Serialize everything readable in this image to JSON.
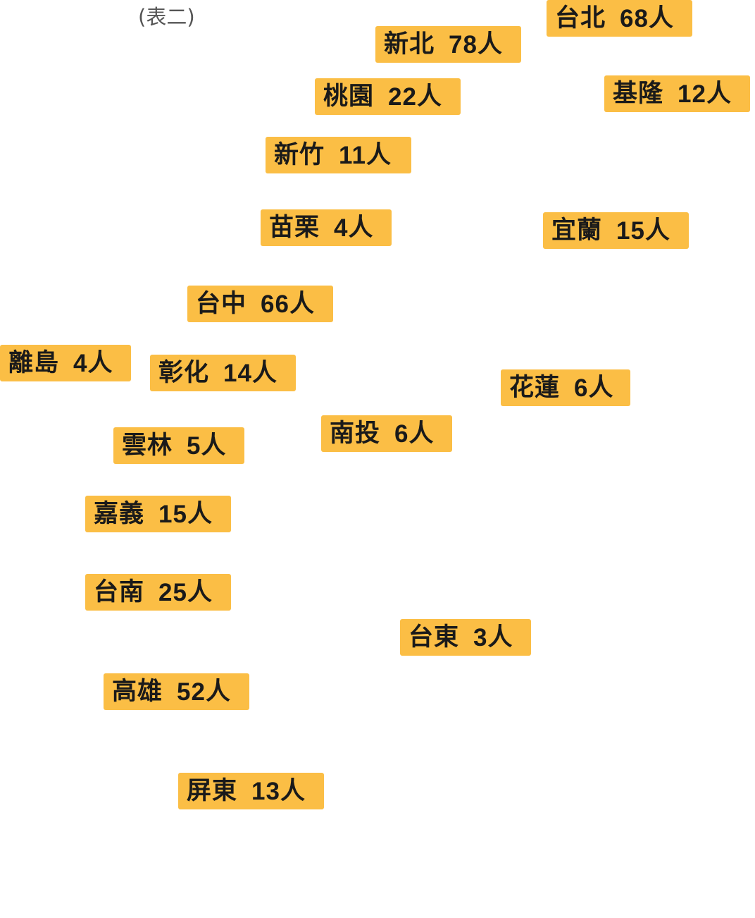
{
  "caption": "(表二)",
  "unit": "人",
  "regions": [
    {
      "id": "taipei",
      "name": "台北",
      "count": "68"
    },
    {
      "id": "new-taipei",
      "name": "新北",
      "count": "78"
    },
    {
      "id": "keelung",
      "name": "基隆",
      "count": "12"
    },
    {
      "id": "taoyuan",
      "name": "桃園",
      "count": "22"
    },
    {
      "id": "hsinchu",
      "name": "新竹",
      "count": "11"
    },
    {
      "id": "miaoli",
      "name": "苗栗",
      "count": "4"
    },
    {
      "id": "yilan",
      "name": "宜蘭",
      "count": "15"
    },
    {
      "id": "taichung",
      "name": "台中",
      "count": "66"
    },
    {
      "id": "outlying-islands",
      "name": "離島",
      "count": "4"
    },
    {
      "id": "changhua",
      "name": "彰化",
      "count": "14"
    },
    {
      "id": "hualien",
      "name": "花蓮",
      "count": "6"
    },
    {
      "id": "nantou",
      "name": "南投",
      "count": "6"
    },
    {
      "id": "yunlin",
      "name": "雲林",
      "count": "5"
    },
    {
      "id": "chiayi",
      "name": "嘉義",
      "count": "15"
    },
    {
      "id": "tainan",
      "name": "台南",
      "count": "25"
    },
    {
      "id": "taitung",
      "name": "台東",
      "count": "3"
    },
    {
      "id": "kaohsiung",
      "name": "高雄",
      "count": "52"
    },
    {
      "id": "pingtung",
      "name": "屏東",
      "count": "13"
    }
  ],
  "colors": {
    "label_background": "#fbbe45",
    "label_text": "#1a1a1a",
    "caption_text": "#555555"
  }
}
